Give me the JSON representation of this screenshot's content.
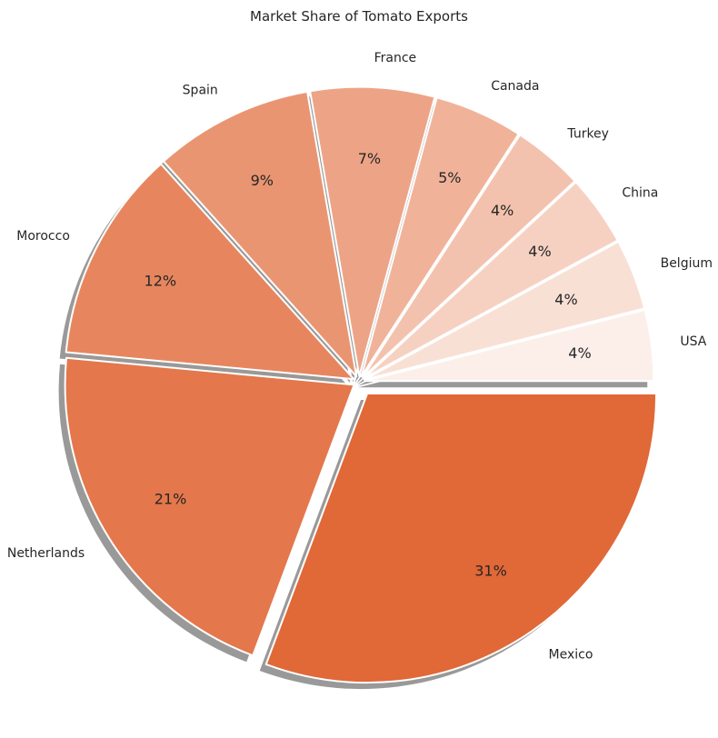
{
  "chart_data": {
    "type": "pie",
    "title": "Market Share of Tomato Exports",
    "start_angle_deg": 0,
    "direction": "counterclockwise",
    "shadow": true,
    "autopct_format": "percent-integer",
    "slices": [
      {
        "label": "USA",
        "value": 4,
        "pct_label": "4%",
        "color": "#fcefe9",
        "explode": 0.02
      },
      {
        "label": "Belgium",
        "value": 4,
        "pct_label": "4%",
        "color": "#f9e0d5",
        "explode": 0.02
      },
      {
        "label": "China",
        "value": 4,
        "pct_label": "4%",
        "color": "#f6d1c2",
        "explode": 0.02
      },
      {
        "label": "Turkey",
        "value": 4,
        "pct_label": "4%",
        "color": "#f3c2ae",
        "explode": 0.02
      },
      {
        "label": "Canada",
        "value": 5,
        "pct_label": "5%",
        "color": "#f0b39a",
        "explode": 0.02
      },
      {
        "label": "France",
        "value": 7,
        "pct_label": "7%",
        "color": "#eda486",
        "explode": 0.02
      },
      {
        "label": "Spain",
        "value": 9,
        "pct_label": "9%",
        "color": "#ea9572",
        "explode": 0.02
      },
      {
        "label": "Morocco",
        "value": 12,
        "pct_label": "12%",
        "color": "#e7865e",
        "explode": 0.02
      },
      {
        "label": "Netherlands",
        "value": 21,
        "pct_label": "21%",
        "color": "#e4774b",
        "explode": 0.02
      },
      {
        "label": "Mexico",
        "value": 31,
        "pct_label": "31%",
        "color": "#e16837",
        "explode": 0.05
      }
    ]
  }
}
